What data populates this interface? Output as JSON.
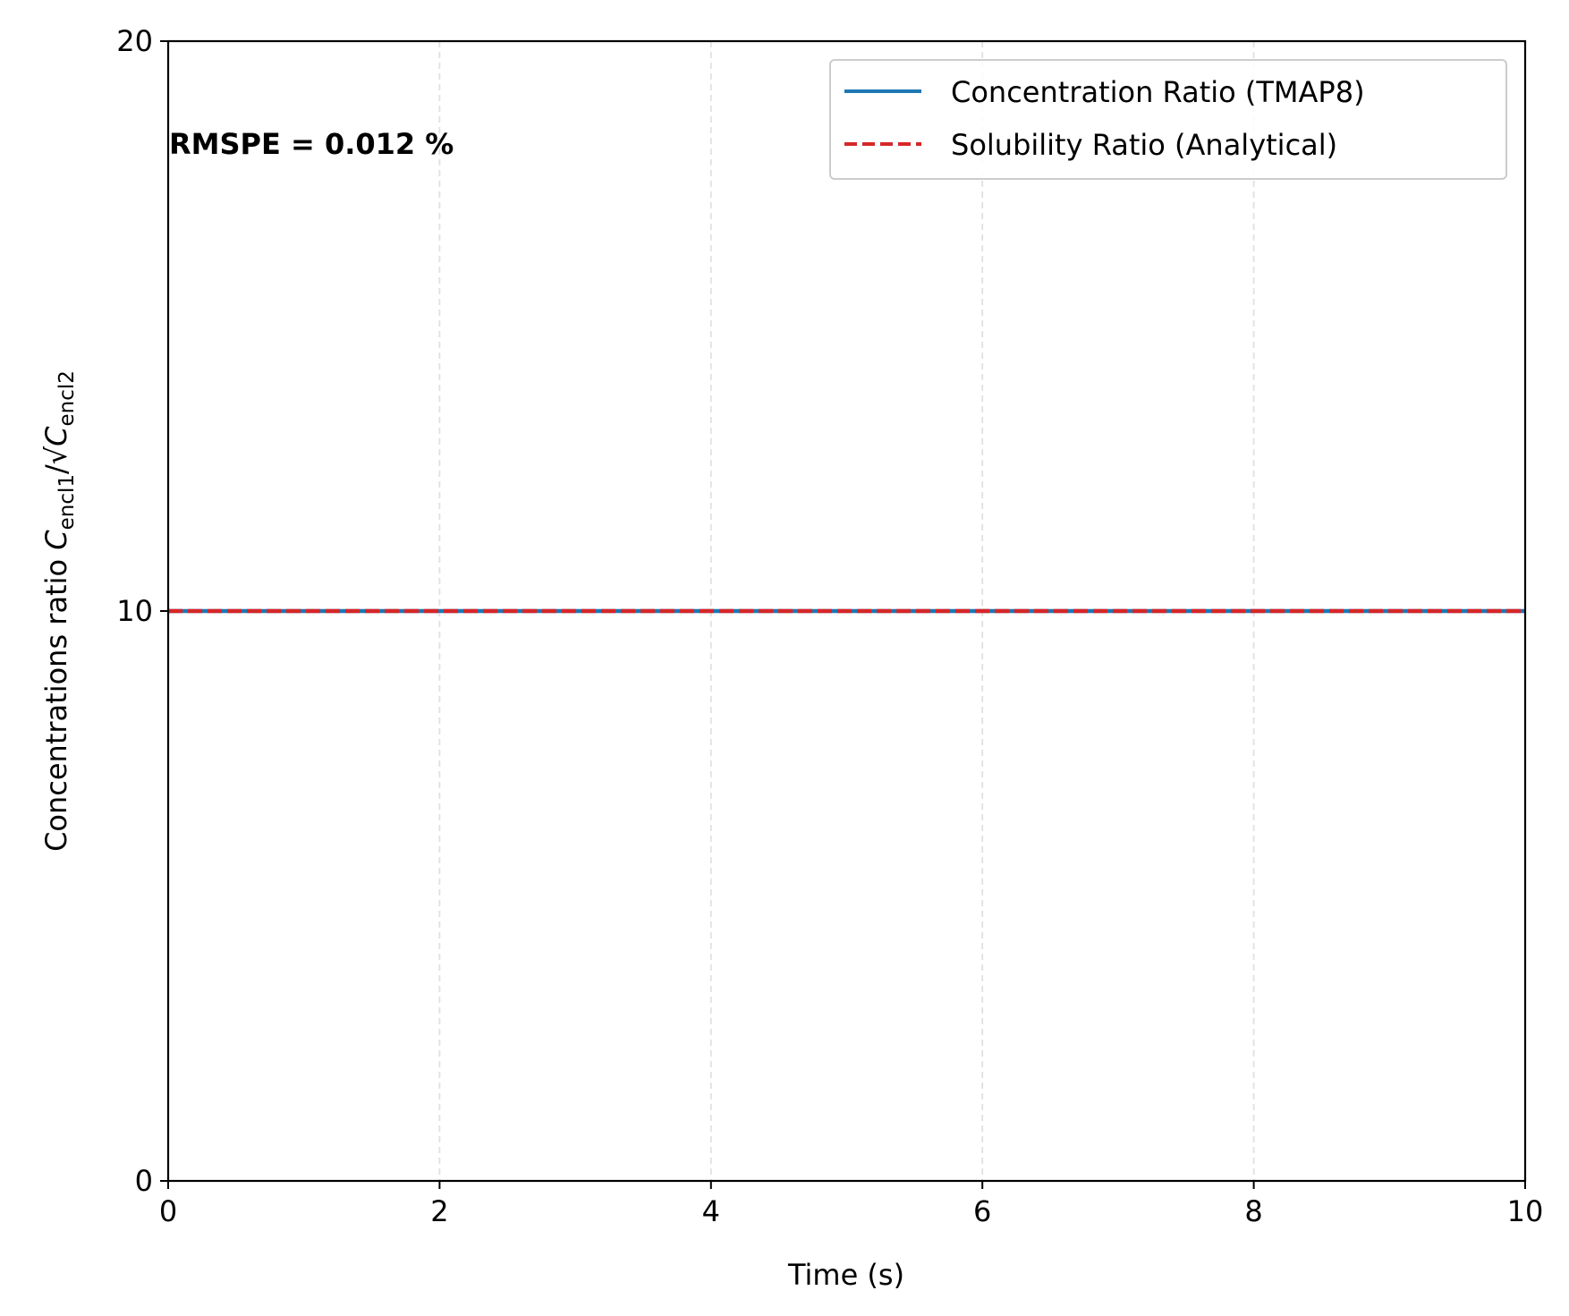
{
  "chart_data": {
    "type": "line",
    "title": "",
    "xlabel": "Time (s)",
    "ylabel": {
      "prefix": "Concentrations ratio ",
      "var": "C",
      "sub1": "encl1",
      "sep": "/√",
      "sub2": "encl2"
    },
    "xlim": [
      0,
      10
    ],
    "ylim": [
      0,
      20
    ],
    "xticks": [
      0,
      2,
      4,
      6,
      8,
      10
    ],
    "yticks": [
      0,
      10,
      20
    ],
    "grid": "x-dashed",
    "legend_position": "top-right",
    "annotation": "RMSPE = 0.012 %",
    "series": [
      {
        "name": "Concentration Ratio (TMAP8)",
        "color": "#1f77b4",
        "style": "solid",
        "x": [
          0,
          10
        ],
        "y": [
          10,
          10
        ]
      },
      {
        "name": "Solubility Ratio (Analytical)",
        "color": "#d62728",
        "style": "dashed",
        "x": [
          0,
          10
        ],
        "y": [
          10,
          10
        ]
      }
    ]
  }
}
